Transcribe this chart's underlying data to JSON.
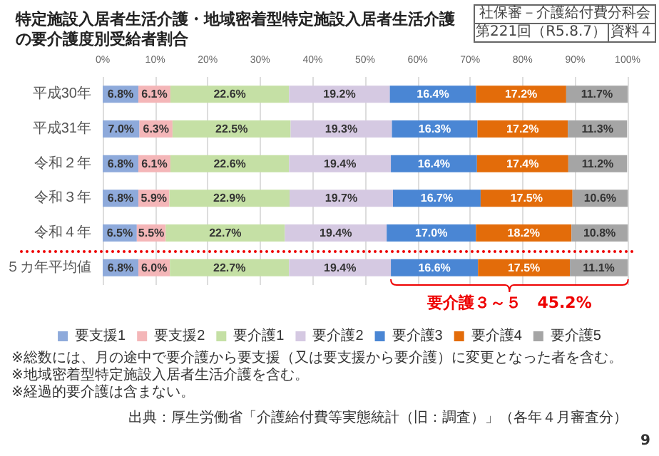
{
  "chart_data": {
    "type": "bar",
    "orientation": "horizontal",
    "stacked": true,
    "title": "特定施設入居者生活介護・地域密着型特定施設入居者生活介護の要介護度別受給者割合",
    "categories": [
      "平成30年",
      "平成31年",
      "令和２年",
      "令和３年",
      "令和４年",
      "５カ年平均値"
    ],
    "series": [
      {
        "name": "要支援1",
        "color": "#8eaadb",
        "values": [
          6.8,
          7.0,
          6.8,
          6.8,
          6.5,
          6.8
        ],
        "value_labels": [
          "6.8%",
          "7.0%",
          "6.8%",
          "6.8%",
          "6.5%",
          "6.8%"
        ]
      },
      {
        "name": "要支援2",
        "color": "#f4b6b8",
        "values": [
          6.1,
          6.3,
          6.1,
          5.9,
          5.5,
          6.0
        ],
        "value_labels": [
          "6.1%",
          "6.3%",
          "6.1%",
          "5.9%",
          "5.5%",
          "6.0%"
        ]
      },
      {
        "name": "要介護1",
        "color": "#c5e0a5",
        "values": [
          22.6,
          22.5,
          22.6,
          22.9,
          22.7,
          22.7
        ],
        "value_labels": [
          "22.6%",
          "22.5%",
          "22.6%",
          "22.9%",
          "22.7%",
          "22.7%"
        ]
      },
      {
        "name": "要介護2",
        "color": "#d5c9e2",
        "values": [
          19.2,
          19.3,
          19.4,
          19.7,
          19.4,
          19.4
        ],
        "value_labels": [
          "19.2%",
          "19.3%",
          "19.4%",
          "19.7%",
          "19.4%",
          "19.4%"
        ]
      },
      {
        "name": "要介護3",
        "color": "#4a86d4",
        "values": [
          16.4,
          16.3,
          16.4,
          16.7,
          17.0,
          16.6
        ],
        "value_labels": [
          "16.4%",
          "16.3%",
          "16.4%",
          "16.7%",
          "17.0%",
          "16.6%"
        ]
      },
      {
        "name": "要介護4",
        "color": "#e36c0a",
        "values": [
          17.2,
          17.2,
          17.4,
          17.5,
          18.2,
          17.5
        ],
        "value_labels": [
          "17.2%",
          "17.2%",
          "17.4%",
          "17.5%",
          "18.2%",
          "17.5%"
        ]
      },
      {
        "name": "要介護5",
        "color": "#a5a5a5",
        "values": [
          11.7,
          11.3,
          11.2,
          10.6,
          10.8,
          11.1
        ],
        "value_labels": [
          "11.7%",
          "11.3%",
          "11.2%",
          "10.6%",
          "10.8%",
          "11.1%"
        ]
      }
    ],
    "xlim": [
      0,
      100
    ],
    "xticks": [
      {
        "value": 0,
        "label": "0%"
      },
      {
        "value": 10,
        "label": "10%"
      },
      {
        "value": 20,
        "label": "20%"
      },
      {
        "value": 30,
        "label": "30%"
      },
      {
        "value": 40,
        "label": "40%"
      },
      {
        "value": 50,
        "label": "50%"
      },
      {
        "value": 60,
        "label": "60%"
      },
      {
        "value": 70,
        "label": "70%"
      },
      {
        "value": 80,
        "label": "80%"
      },
      {
        "value": 90,
        "label": "90%"
      },
      {
        "value": 100,
        "label": "100%"
      }
    ],
    "grid": "x",
    "legend": "bottom",
    "annotations": [
      "社保審－介護給付費分科会",
      "第221回（R5.8.7）",
      "資料４",
      "要介護３～５　45.2%",
      "※総数には、月の途中で要介護から要支援（又は要支援から要介護）に変更となった者を含む。",
      "※地域密着型特定施設入居者生活介護を含む。",
      "※経過的要介護は含まない。",
      "出典：厚生労働省「介護給付費等実態統計（旧：調査）」（各年４月審査分）",
      "9"
    ]
  }
}
